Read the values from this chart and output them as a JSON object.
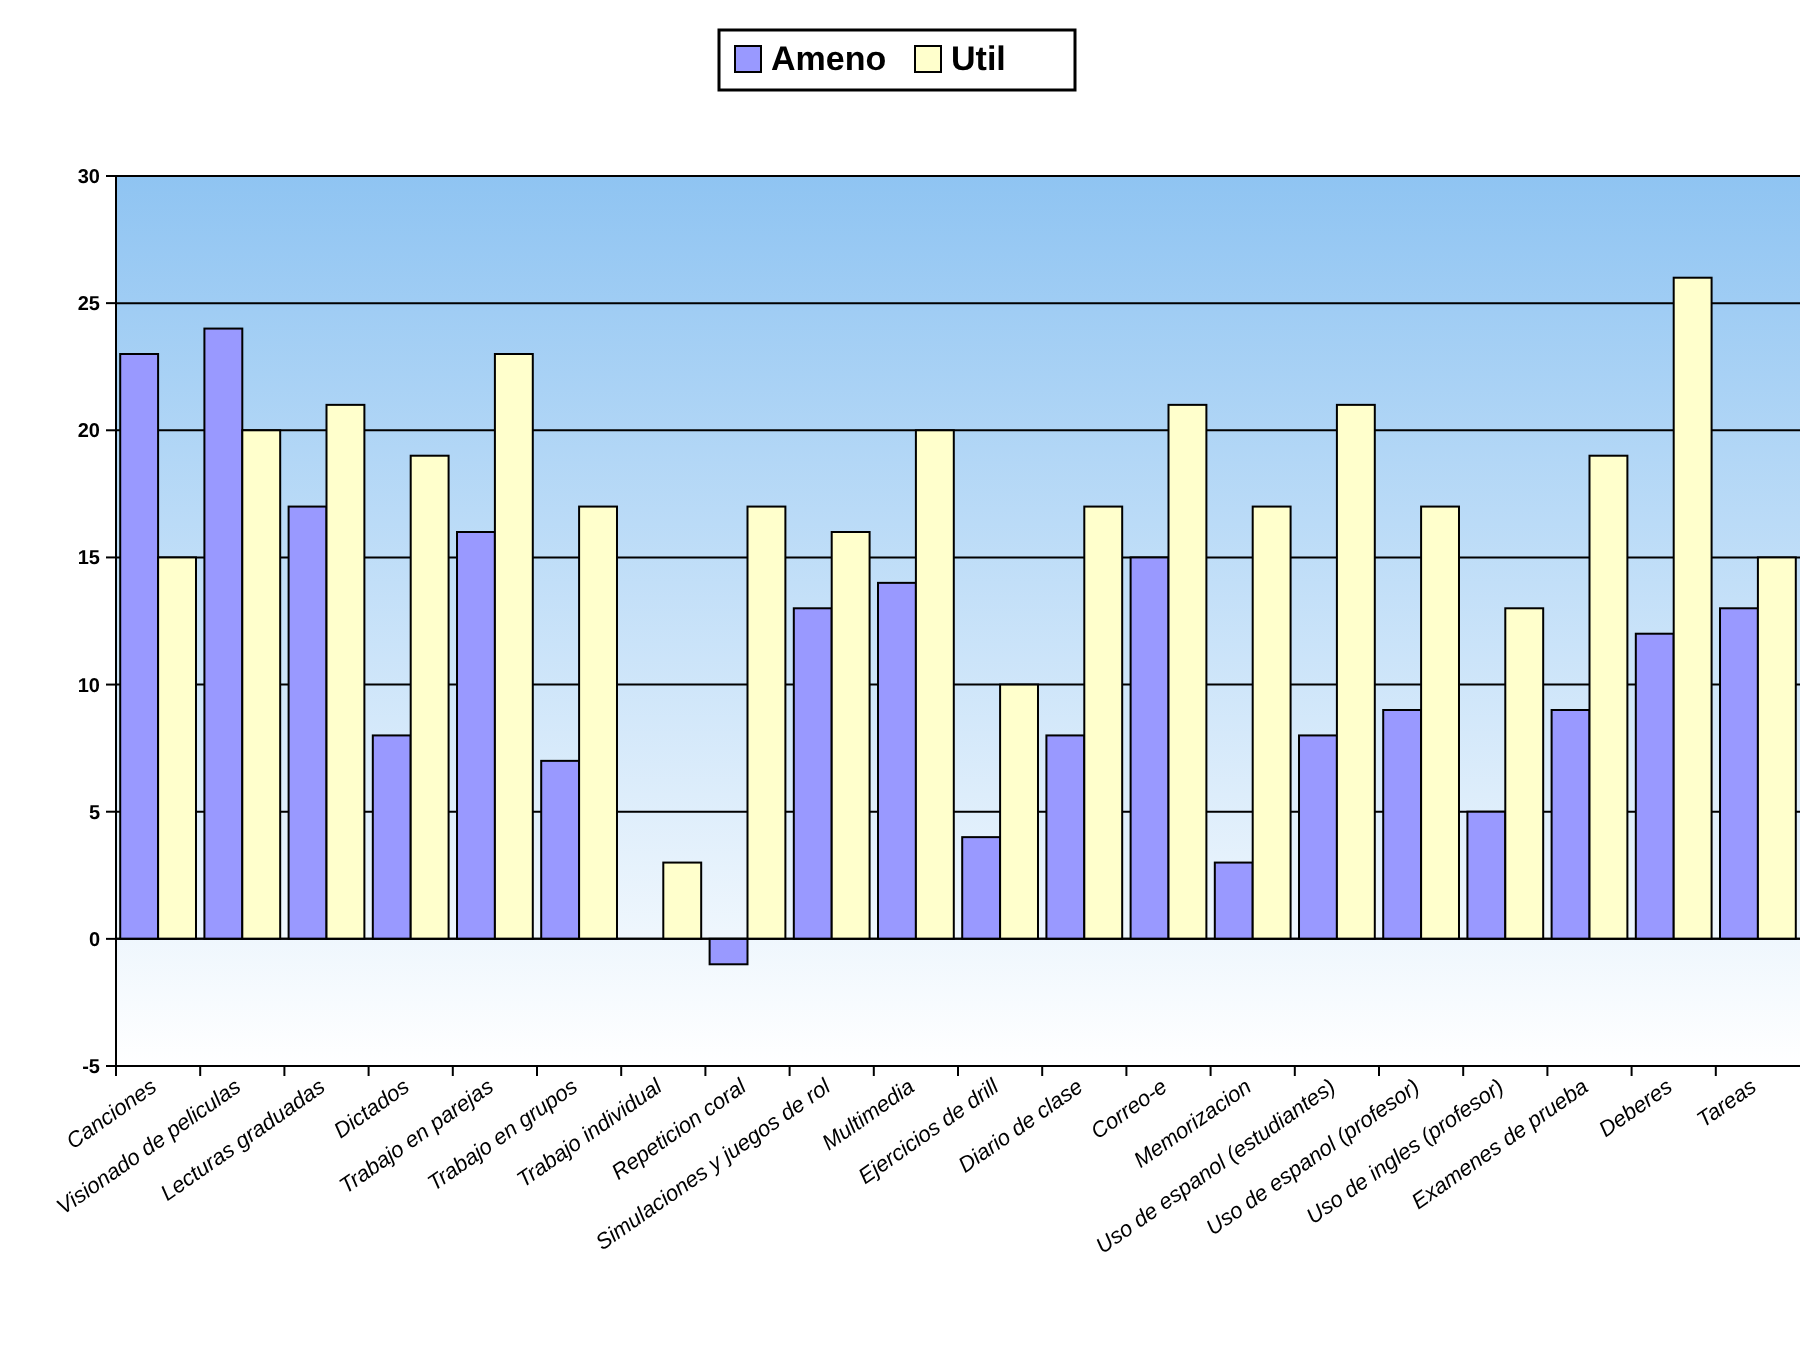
{
  "chart_data": {
    "type": "bar",
    "categories": [
      "Canciones",
      "Visionado de peliculas",
      "Lecturas graduadas",
      "Dictados",
      "Trabajo en parejas",
      "Trabajo en grupos",
      "Trabajo individual",
      "Repeticion coral",
      "Simulaciones y juegos de rol",
      "Multimedia",
      "Ejercicios de drill",
      "Diario de clase",
      "Correo-e",
      "Memorizacion",
      "Uso de espanol (estudiantes)",
      "Uso de espanol (profesor)",
      "Uso de ingles (profesor)",
      "Examenes de prueba",
      "Deberes",
      "Tareas"
    ],
    "series": [
      {
        "name": "Ameno",
        "color": "#9999ff",
        "values": [
          23,
          24,
          17,
          8,
          16,
          7,
          0,
          -1,
          13,
          14,
          4,
          8,
          15,
          3,
          8,
          9,
          5,
          9,
          12,
          13
        ]
      },
      {
        "name": "Util",
        "color": "#ffffcc",
        "values": [
          15,
          20,
          21,
          19,
          23,
          17,
          3,
          17,
          16,
          20,
          10,
          17,
          21,
          17,
          21,
          17,
          13,
          19,
          26,
          15
        ]
      }
    ],
    "ylim": [
      -5,
      30
    ],
    "yticks": [
      -5,
      0,
      5,
      10,
      15,
      20,
      25,
      30
    ],
    "grid": "y",
    "legend": "top"
  }
}
